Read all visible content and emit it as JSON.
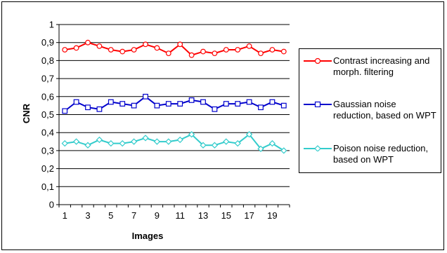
{
  "chart_data": {
    "type": "line",
    "title": "",
    "xlabel": "Images",
    "ylabel": "CNR",
    "x": [
      1,
      2,
      3,
      4,
      5,
      6,
      7,
      8,
      9,
      10,
      11,
      12,
      13,
      14,
      15,
      16,
      17,
      18,
      19,
      20
    ],
    "x_tick_labels": [
      "1",
      "3",
      "5",
      "7",
      "9",
      "11",
      "13",
      "15",
      "17",
      "19"
    ],
    "y_tick_labels": [
      "0",
      "0,1",
      "0,2",
      "0,3",
      "0,4",
      "0,5",
      "0,6",
      "0,7",
      "0,8",
      "0,9",
      "1"
    ],
    "ylim": [
      0,
      1
    ],
    "grid": true,
    "legend_position": "right",
    "series": [
      {
        "name": "Contrast increasing and morph. filtering",
        "color": "#ff0000",
        "marker": "circle",
        "values": [
          0.86,
          0.87,
          0.9,
          0.88,
          0.86,
          0.85,
          0.86,
          0.89,
          0.87,
          0.84,
          0.89,
          0.83,
          0.85,
          0.84,
          0.86,
          0.86,
          0.88,
          0.84,
          0.86,
          0.85
        ]
      },
      {
        "name": "Gaussian noise reduction, based on WPT",
        "color": "#0000cc",
        "marker": "square",
        "values": [
          0.52,
          0.57,
          0.54,
          0.53,
          0.57,
          0.56,
          0.55,
          0.6,
          0.55,
          0.56,
          0.56,
          0.58,
          0.57,
          0.53,
          0.56,
          0.56,
          0.57,
          0.54,
          0.57,
          0.55
        ]
      },
      {
        "name": "Poison noise reduction, based on  WPT",
        "color": "#33cccc",
        "marker": "diamond",
        "values": [
          0.34,
          0.35,
          0.33,
          0.36,
          0.34,
          0.34,
          0.35,
          0.37,
          0.35,
          0.35,
          0.36,
          0.39,
          0.33,
          0.33,
          0.35,
          0.34,
          0.39,
          0.31,
          0.34,
          0.3
        ]
      }
    ]
  }
}
